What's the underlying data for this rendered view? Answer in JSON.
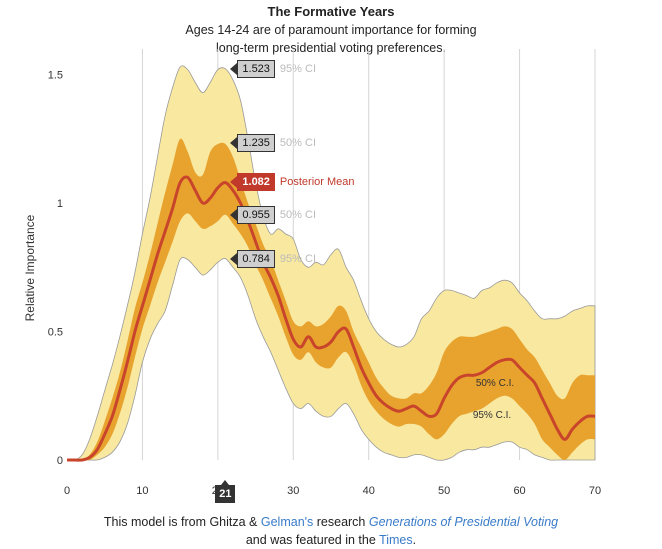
{
  "header": {
    "title": "The Formative Years",
    "subtitle_line1": "Ages 14-24 are of paramount importance for forming",
    "subtitle_line2": "long-term presidential voting preferences."
  },
  "chart_data": {
    "type": "area",
    "xlabel": "",
    "ylabel": "Relative Importance",
    "xlim": [
      0,
      70
    ],
    "ylim": [
      0,
      1.6
    ],
    "xticks": [
      0,
      10,
      20,
      30,
      40,
      50,
      60,
      70
    ],
    "yticks": [
      0,
      0.5,
      1,
      1.5
    ],
    "ytick_labels": [
      "0",
      "0.5",
      "1",
      "1.5"
    ],
    "grid": "vertical",
    "hover_age": "21",
    "hover_values": [
      {
        "value": "1.523",
        "label": "95% CI",
        "kind": "upper95"
      },
      {
        "value": "1.235",
        "label": "50% CI",
        "kind": "upper50"
      },
      {
        "value": "1.082",
        "label": "Posterior Mean",
        "kind": "mean"
      },
      {
        "value": "0.955",
        "label": "50% CI",
        "kind": "lower50"
      },
      {
        "value": "0.784",
        "label": "95% CI",
        "kind": "lower95"
      }
    ],
    "band_labels": {
      "inner": "50% C.I.",
      "outer": "95% C.I."
    },
    "colors": {
      "band95": "#f8e8a0",
      "band50": "#e8a32e",
      "mean": "#c8452b",
      "band_edge": "#9a9a9a",
      "grid": "#d4d4d4"
    },
    "series": [
      {
        "name": "Posterior Mean",
        "x": [
          0,
          1,
          2,
          3,
          4,
          5,
          6,
          7,
          8,
          9,
          10,
          11,
          12,
          13,
          14,
          15,
          16,
          17,
          18,
          19,
          20,
          21,
          22,
          23,
          24,
          25,
          26,
          27,
          28,
          29,
          30,
          31,
          32,
          33,
          34,
          35,
          36,
          37,
          38,
          39,
          40,
          41,
          42,
          43,
          44,
          45,
          46,
          47,
          48,
          49,
          50,
          51,
          52,
          53,
          54,
          55,
          56,
          57,
          58,
          59,
          60,
          61,
          62,
          63,
          64,
          65,
          66,
          67,
          68,
          69,
          70
        ],
        "y": [
          0,
          0,
          0,
          0.01,
          0.04,
          0.1,
          0.17,
          0.27,
          0.38,
          0.5,
          0.6,
          0.7,
          0.8,
          0.89,
          0.98,
          1.08,
          1.1,
          1.05,
          1.0,
          1.02,
          1.06,
          1.08,
          1.05,
          1.0,
          0.93,
          0.85,
          0.77,
          0.71,
          0.64,
          0.55,
          0.47,
          0.44,
          0.48,
          0.44,
          0.44,
          0.46,
          0.5,
          0.51,
          0.44,
          0.36,
          0.3,
          0.25,
          0.22,
          0.2,
          0.19,
          0.2,
          0.21,
          0.19,
          0.17,
          0.18,
          0.24,
          0.29,
          0.32,
          0.33,
          0.33,
          0.34,
          0.36,
          0.38,
          0.39,
          0.39,
          0.36,
          0.33,
          0.3,
          0.24,
          0.18,
          0.12,
          0.08,
          0.12,
          0.15,
          0.17,
          0.17
        ]
      },
      {
        "name": "50% CI upper",
        "x": [
          0,
          1,
          2,
          3,
          4,
          5,
          6,
          7,
          8,
          9,
          10,
          11,
          12,
          13,
          14,
          15,
          16,
          17,
          18,
          19,
          20,
          21,
          22,
          23,
          24,
          25,
          26,
          27,
          28,
          29,
          30,
          31,
          32,
          33,
          34,
          35,
          36,
          37,
          38,
          39,
          40,
          41,
          42,
          43,
          44,
          45,
          46,
          47,
          48,
          49,
          50,
          51,
          52,
          53,
          54,
          55,
          56,
          57,
          58,
          59,
          60,
          61,
          62,
          63,
          64,
          65,
          66,
          67,
          68,
          69,
          70
        ],
        "y": [
          0,
          0,
          0,
          0.02,
          0.07,
          0.15,
          0.24,
          0.34,
          0.46,
          0.59,
          0.69,
          0.8,
          0.92,
          1.04,
          1.15,
          1.25,
          1.2,
          1.12,
          1.11,
          1.2,
          1.23,
          1.23,
          1.18,
          1.09,
          1.0,
          0.92,
          0.84,
          0.78,
          0.7,
          0.62,
          0.54,
          0.52,
          0.54,
          0.52,
          0.53,
          0.56,
          0.6,
          0.58,
          0.5,
          0.44,
          0.38,
          0.32,
          0.28,
          0.25,
          0.24,
          0.24,
          0.26,
          0.26,
          0.29,
          0.34,
          0.42,
          0.46,
          0.48,
          0.48,
          0.48,
          0.49,
          0.5,
          0.51,
          0.52,
          0.51,
          0.47,
          0.43,
          0.4,
          0.35,
          0.3,
          0.25,
          0.24,
          0.3,
          0.33,
          0.33,
          0.33
        ]
      },
      {
        "name": "50% CI lower",
        "x": [
          0,
          1,
          2,
          3,
          4,
          5,
          6,
          7,
          8,
          9,
          10,
          11,
          12,
          13,
          14,
          15,
          16,
          17,
          18,
          19,
          20,
          21,
          22,
          23,
          24,
          25,
          26,
          27,
          28,
          29,
          30,
          31,
          32,
          33,
          34,
          35,
          36,
          37,
          38,
          39,
          40,
          41,
          42,
          43,
          44,
          45,
          46,
          47,
          48,
          49,
          50,
          51,
          52,
          53,
          54,
          55,
          56,
          57,
          58,
          59,
          60,
          61,
          62,
          63,
          64,
          65,
          66,
          67,
          68,
          69,
          70
        ],
        "y": [
          0,
          0,
          0,
          0,
          0.02,
          0.05,
          0.1,
          0.18,
          0.28,
          0.4,
          0.51,
          0.6,
          0.69,
          0.77,
          0.85,
          0.93,
          0.96,
          0.93,
          0.9,
          0.91,
          0.93,
          0.955,
          0.92,
          0.88,
          0.83,
          0.76,
          0.7,
          0.63,
          0.56,
          0.48,
          0.41,
          0.39,
          0.42,
          0.38,
          0.36,
          0.36,
          0.4,
          0.42,
          0.37,
          0.29,
          0.23,
          0.19,
          0.16,
          0.14,
          0.13,
          0.14,
          0.14,
          0.13,
          0.1,
          0.08,
          0.1,
          0.14,
          0.17,
          0.18,
          0.19,
          0.2,
          0.22,
          0.24,
          0.25,
          0.24,
          0.21,
          0.18,
          0.14,
          0.08,
          0.05,
          0.02,
          0.0,
          0.03,
          0.06,
          0.08,
          0.08
        ]
      },
      {
        "name": "95% CI upper",
        "x": [
          0,
          1,
          2,
          3,
          4,
          5,
          6,
          7,
          8,
          9,
          10,
          11,
          12,
          13,
          14,
          15,
          16,
          17,
          18,
          19,
          20,
          21,
          22,
          23,
          24,
          25,
          26,
          27,
          28,
          29,
          30,
          31,
          32,
          33,
          34,
          35,
          36,
          37,
          38,
          39,
          40,
          41,
          42,
          43,
          44,
          45,
          46,
          47,
          48,
          49,
          50,
          51,
          52,
          53,
          54,
          55,
          56,
          57,
          58,
          59,
          60,
          61,
          62,
          63,
          64,
          65,
          66,
          67,
          68,
          69,
          70
        ],
        "y": [
          0,
          0,
          0.02,
          0.08,
          0.17,
          0.27,
          0.37,
          0.48,
          0.6,
          0.73,
          0.88,
          1.02,
          1.18,
          1.34,
          1.45,
          1.53,
          1.52,
          1.47,
          1.43,
          1.47,
          1.52,
          1.523,
          1.48,
          1.4,
          1.25,
          1.08,
          0.95,
          0.88,
          0.9,
          0.88,
          0.86,
          0.78,
          0.75,
          0.77,
          0.76,
          0.8,
          0.82,
          0.75,
          0.7,
          0.62,
          0.55,
          0.5,
          0.47,
          0.45,
          0.44,
          0.45,
          0.48,
          0.55,
          0.58,
          0.63,
          0.66,
          0.66,
          0.65,
          0.64,
          0.63,
          0.66,
          0.67,
          0.69,
          0.7,
          0.69,
          0.65,
          0.62,
          0.58,
          0.55,
          0.55,
          0.55,
          0.56,
          0.58,
          0.59,
          0.6,
          0.6
        ]
      },
      {
        "name": "95% CI lower",
        "x": [
          0,
          1,
          2,
          3,
          4,
          5,
          6,
          7,
          8,
          9,
          10,
          11,
          12,
          13,
          14,
          15,
          16,
          17,
          18,
          19,
          20,
          21,
          22,
          23,
          24,
          25,
          26,
          27,
          28,
          29,
          30,
          31,
          32,
          33,
          34,
          35,
          36,
          37,
          38,
          39,
          40,
          41,
          42,
          43,
          44,
          45,
          46,
          47,
          48,
          49,
          50,
          51,
          52,
          53,
          54,
          55,
          56,
          57,
          58,
          59,
          60,
          61,
          62,
          63,
          64,
          65,
          66,
          67,
          68,
          69,
          70
        ],
        "y": [
          0,
          0,
          0,
          0,
          0,
          0.01,
          0.03,
          0.07,
          0.14,
          0.25,
          0.38,
          0.47,
          0.53,
          0.58,
          0.68,
          0.78,
          0.78,
          0.75,
          0.72,
          0.74,
          0.77,
          0.784,
          0.75,
          0.71,
          0.64,
          0.55,
          0.48,
          0.42,
          0.35,
          0.28,
          0.22,
          0.2,
          0.22,
          0.19,
          0.17,
          0.17,
          0.2,
          0.22,
          0.18,
          0.12,
          0.08,
          0.05,
          0.03,
          0.02,
          0.01,
          0.01,
          0.02,
          0.02,
          0.01,
          0,
          0,
          0.01,
          0.03,
          0.04,
          0.04,
          0.05,
          0.05,
          0.06,
          0.07,
          0.07,
          0.05,
          0.04,
          0.02,
          0.01,
          0,
          0,
          0,
          0,
          0,
          0,
          0
        ]
      }
    ]
  },
  "footer": {
    "line1_prefix": "This model is from Ghitza & ",
    "author_link": "Gelman's",
    "line1_mid": " research ",
    "paper_link": "Generations of Presidential Voting",
    "line2_prefix": "and was featured in the ",
    "times_link": "Times",
    "line2_suffix": "."
  }
}
